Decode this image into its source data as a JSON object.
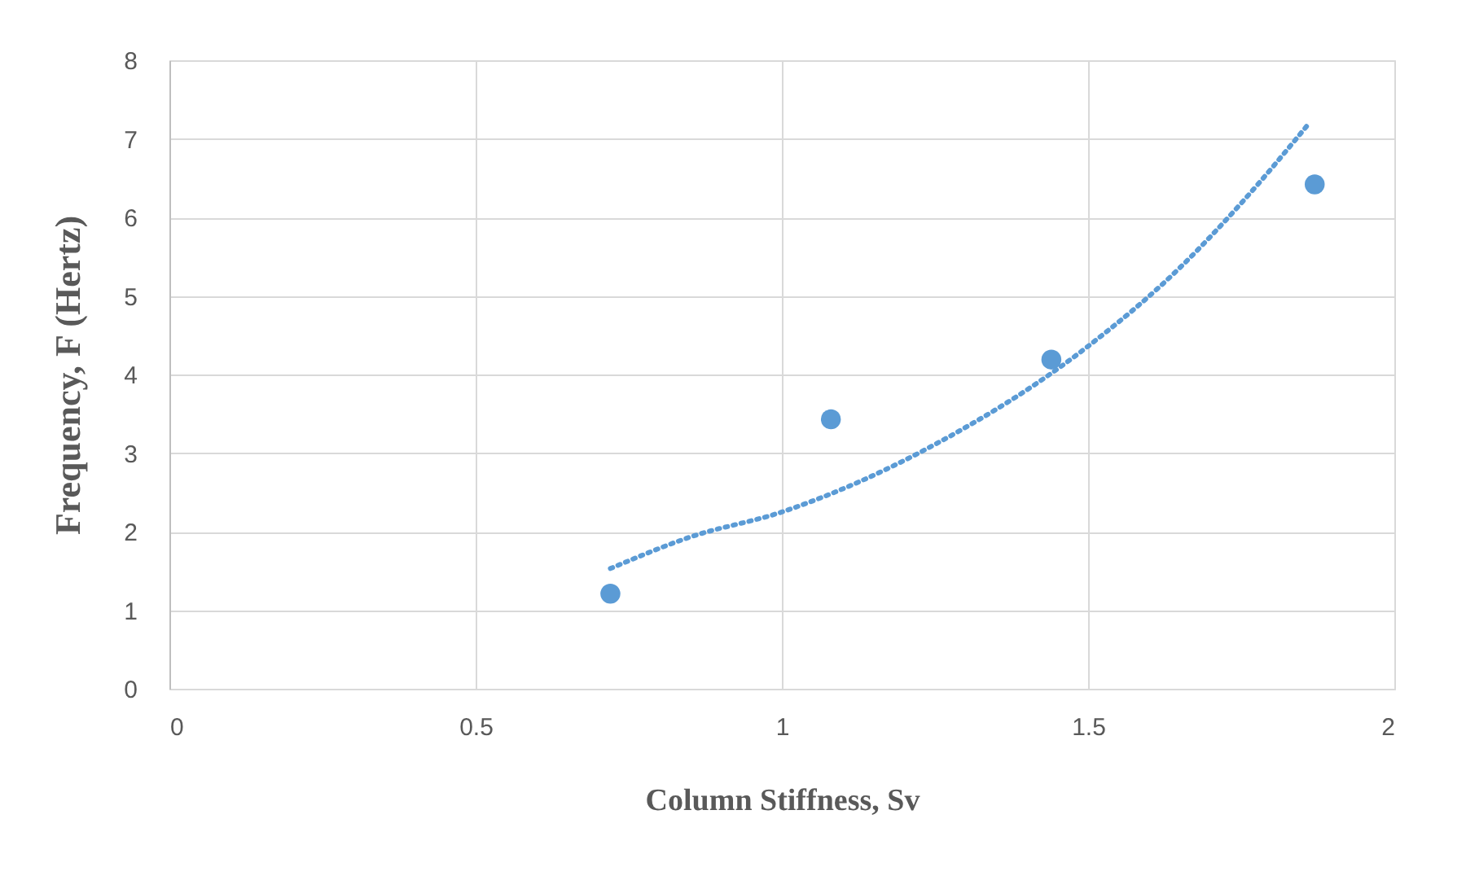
{
  "chart_data": {
    "type": "scatter",
    "xlabel": "Column Stiffness, Sv",
    "ylabel": "Frequency, F (Hertz)",
    "xlim": [
      0,
      2
    ],
    "xticks": [
      0,
      0.5,
      1,
      1.5,
      2
    ],
    "ylim": [
      0,
      8
    ],
    "yticks": [
      0,
      1,
      2,
      3,
      4,
      5,
      6,
      7,
      8
    ],
    "grid": true,
    "marker": "circle",
    "series": [
      {
        "color": "#5b9bd5",
        "x": [
          0.72,
          1.08,
          1.44,
          1.87
        ],
        "values": [
          1.21,
          3.43,
          4.19,
          6.42
        ]
      },
      {
        "type": "line",
        "color": "#5b9bd5",
        "line_style": "dotted",
        "marker": "none",
        "x": [
          0.72,
          0.85,
          1.0,
          1.25,
          1.5,
          1.65,
          1.75,
          1.86
        ],
        "values": [
          1.53,
          1.93,
          2.25,
          3.11,
          4.36,
          5.36,
          6.18,
          7.19
        ]
      }
    ]
  }
}
